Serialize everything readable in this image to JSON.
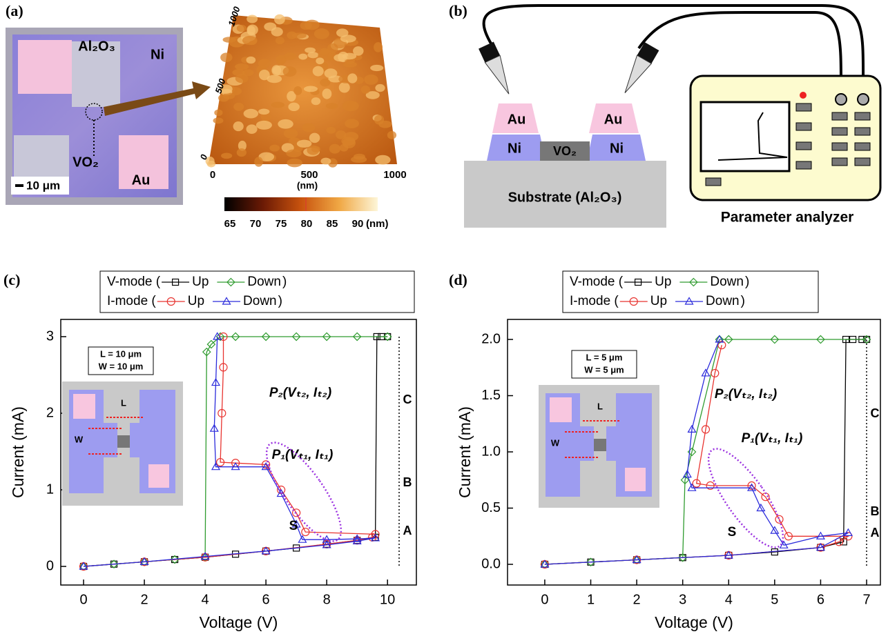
{
  "panel_a": {
    "label": "(a)",
    "texts": [
      "Al₂O₃",
      "Ni",
      "VO₂",
      "Au",
      "10 μm"
    ],
    "afm_y_ticks": [
      "1000",
      "500",
      "0"
    ],
    "afm_x_ticks": [
      "0",
      "500",
      "1000"
    ],
    "afm_x_unit": "(nm)",
    "colorbar_ticks": [
      "65",
      "70",
      "75",
      "80",
      "85",
      "90"
    ],
    "colorbar_unit": "(nm)"
  },
  "panel_b": {
    "label": "(b)",
    "layers": [
      "Au",
      "Au",
      "Ni",
      "Ni",
      "VO₂"
    ],
    "substrate": "Substrate (Al₂O₃)",
    "instrument": "Parameter analyzer"
  },
  "chart_data": [
    {
      "type": "line",
      "panel": "(c)",
      "x_label": "Voltage (V)",
      "y_label": "Current (mA)",
      "xlim": [
        -0.75,
        10.95
      ],
      "ylim": [
        -0.243,
        3.225
      ],
      "xticks": [
        0,
        2,
        4,
        6,
        8,
        10
      ],
      "yticks": [
        0,
        1,
        2,
        3
      ],
      "legend_rows": [
        "V-mode (",
        "I-mode ("
      ],
      "legend_close": ")",
      "series": [
        {
          "name": "Up",
          "color": "#000000",
          "marker": "square",
          "x": [
            0,
            1,
            2,
            3,
            4,
            5,
            6,
            7,
            8,
            9,
            9.6,
            9.65,
            9.8,
            10
          ],
          "values": [
            0,
            0.03,
            0.06,
            0.09,
            0.12,
            0.16,
            0.2,
            0.24,
            0.29,
            0.34,
            0.38,
            3.0,
            3.0,
            3.0
          ]
        },
        {
          "name": "Down",
          "color": "#2e9b2e",
          "marker": "diamond",
          "x": [
            10,
            9,
            8,
            7,
            6,
            5,
            4.5,
            4.2,
            4.05,
            4.0,
            3,
            2,
            1,
            0
          ],
          "values": [
            3,
            3,
            3,
            3,
            3,
            3,
            3,
            2.9,
            2.8,
            0.12,
            0.09,
            0.06,
            0.03,
            0
          ]
        },
        {
          "name": "Up",
          "color": "#e8332f",
          "marker": "circle",
          "x": [
            0,
            2,
            4,
            6,
            8,
            9,
            9.5,
            9.6,
            7.3,
            7.0,
            6.5,
            6.0,
            5.0,
            4.5,
            4.55,
            4.6,
            4.6
          ],
          "values": [
            0,
            0.06,
            0.12,
            0.2,
            0.29,
            0.34,
            0.38,
            0.42,
            0.45,
            0.7,
            1.0,
            1.33,
            1.35,
            1.36,
            2.0,
            2.6,
            3.0
          ]
        },
        {
          "name": "Down",
          "color": "#2a2adb",
          "marker": "triangle",
          "x": [
            4.4,
            4.35,
            4.3,
            4.35,
            5.0,
            6.0,
            6.5,
            7.0,
            7.2,
            8,
            9,
            9.6,
            9,
            8,
            6,
            4,
            2,
            0
          ],
          "values": [
            3.0,
            2.4,
            1.8,
            1.3,
            1.3,
            1.3,
            0.95,
            0.55,
            0.35,
            0.35,
            0.36,
            0.37,
            0.33,
            0.28,
            0.2,
            0.13,
            0.06,
            0
          ]
        }
      ],
      "annotations": [
        "P₂(Vₜ₂, Iₜ₂)",
        "P₁(Vₜ₁, Iₜ₁)",
        "S",
        "A",
        "B",
        "C"
      ],
      "inset": [
        "L = 10 μm",
        "W = 10 μm",
        "L",
        "W"
      ]
    },
    {
      "type": "line",
      "panel": "(d)",
      "x_label": "Voltage (V)",
      "y_label": "Current (mA)",
      "xlim": [
        -0.81,
        7.3
      ],
      "ylim": [
        -0.184,
        2.178
      ],
      "xticks": [
        0,
        1,
        2,
        3,
        4,
        5,
        6,
        7
      ],
      "yticks": [
        {
          "value": 0,
          "label": "0.0"
        },
        {
          "value": 0.5,
          "label": "0.5"
        },
        {
          "value": 1,
          "label": "1.0"
        },
        {
          "value": 1.5,
          "label": "1.5"
        },
        {
          "value": 2,
          "label": "2.0"
        }
      ],
      "legend_rows": [
        "V-mode (",
        "I-mode ("
      ],
      "legend_close": ")",
      "series": [
        {
          "name": "Up",
          "color": "#000000",
          "marker": "square",
          "x": [
            0,
            1,
            2,
            3,
            4,
            5,
            6,
            6.5,
            6.55,
            6.7,
            6.9,
            7
          ],
          "values": [
            0,
            0.02,
            0.04,
            0.06,
            0.08,
            0.11,
            0.15,
            0.2,
            2.0,
            2.0,
            2.0,
            2.0
          ]
        },
        {
          "name": "Down",
          "color": "#2e9b2e",
          "marker": "diamond",
          "x": [
            7,
            6,
            5,
            4,
            3.8,
            3.2,
            3.05,
            3.0,
            2,
            1,
            0
          ],
          "values": [
            2,
            2,
            2,
            2,
            2,
            1.0,
            0.75,
            0.06,
            0.04,
            0.02,
            0
          ]
        },
        {
          "name": "Up",
          "color": "#e8332f",
          "marker": "circle",
          "x": [
            0,
            2,
            4,
            6,
            6.4,
            6.6,
            5.3,
            5.1,
            4.8,
            4.5,
            3.6,
            3.3,
            3.5,
            3.7,
            3.85
          ],
          "values": [
            0,
            0.04,
            0.08,
            0.15,
            0.2,
            0.25,
            0.25,
            0.4,
            0.6,
            0.7,
            0.7,
            0.72,
            1.2,
            1.7,
            1.95
          ]
        },
        {
          "name": "Down",
          "color": "#2a2adb",
          "marker": "triangle",
          "x": [
            3.8,
            3.5,
            3.2,
            3.1,
            3.2,
            4.5,
            4.7,
            5.0,
            5.2,
            6.0,
            6.6,
            6,
            4,
            2,
            0
          ],
          "values": [
            2.0,
            1.7,
            1.2,
            0.8,
            0.68,
            0.68,
            0.5,
            0.3,
            0.17,
            0.25,
            0.28,
            0.15,
            0.08,
            0.04,
            0
          ]
        }
      ],
      "annotations": [
        "P₂(Vₜ₂, Iₜ₂)",
        "P₁(Vₜ₁, Iₜ₁)",
        "S",
        "A",
        "B",
        "C"
      ],
      "inset": [
        "L = 5 μm",
        "W = 5 μm",
        "L",
        "W"
      ]
    }
  ]
}
